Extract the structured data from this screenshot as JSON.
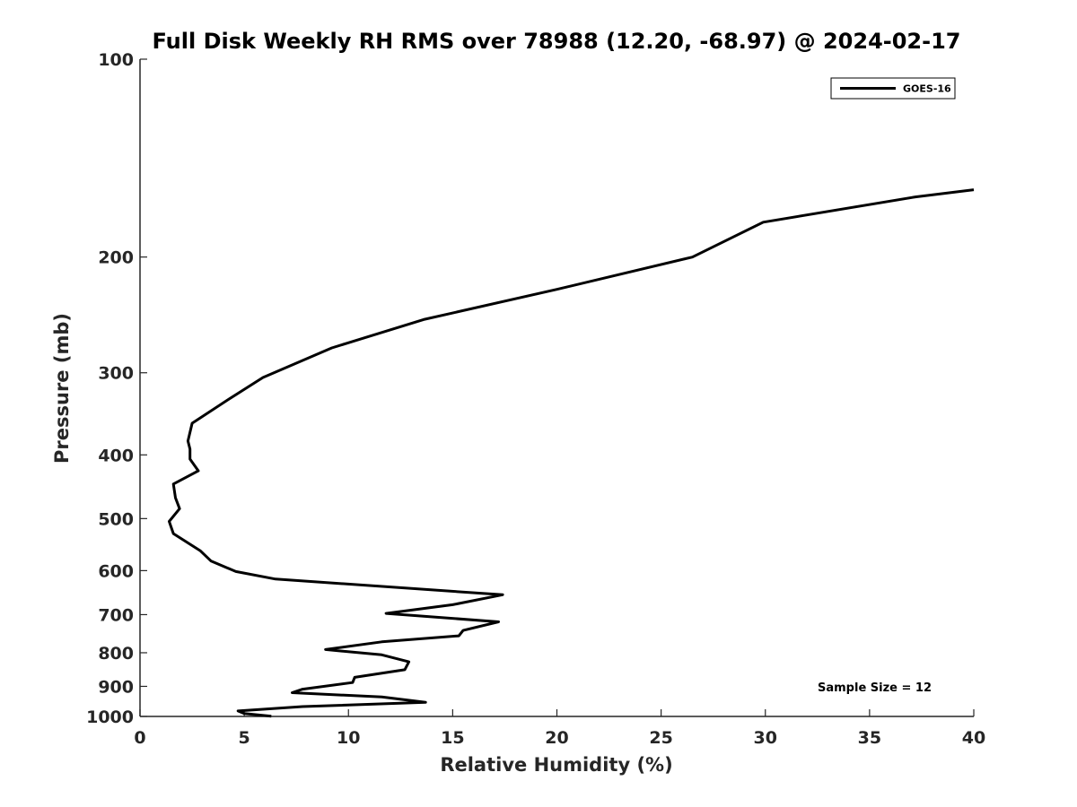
{
  "chart_data": {
    "type": "line",
    "title": "Full Disk Weekly RH RMS over 78988 (12.20, -68.97) @ 2024-02-17",
    "xlabel": "Relative Humidity (%)",
    "ylabel": "Pressure (mb)",
    "xlim": [
      0,
      40
    ],
    "ylim": [
      100,
      1000
    ],
    "y_scale": "log",
    "y_reversed": true,
    "grid": false,
    "legend_position": "top-right",
    "x_ticks": [
      "0",
      "5",
      "10",
      "15",
      "20",
      "25",
      "30",
      "35",
      "40"
    ],
    "y_ticks": [
      "100",
      "200",
      "300",
      "400",
      "500",
      "600",
      "700",
      "800",
      "900",
      "1000"
    ],
    "series": [
      {
        "name": "GOES-16",
        "color": "#000000",
        "x": [
          40.0,
          37.2,
          29.9,
          26.5,
          20.0,
          13.6,
          9.2,
          5.9,
          4.2,
          2.5,
          2.3,
          2.4,
          2.4,
          2.8,
          1.6,
          1.7,
          1.9,
          1.4,
          1.6,
          2.9,
          3.4,
          4.6,
          6.5,
          17.4,
          15.0,
          11.8,
          17.2,
          15.5,
          15.3,
          11.6,
          8.9,
          11.6,
          12.9,
          12.7,
          10.3,
          10.2,
          7.8,
          7.3,
          11.6,
          13.7,
          7.8,
          4.7,
          5.0,
          6.3
        ],
        "y": [
          158,
          162,
          177,
          200,
          224,
          249,
          275,
          305,
          330,
          358,
          381,
          392,
          406,
          423,
          443,
          465,
          483,
          505,
          527,
          560,
          580,
          602,
          618,
          653,
          676,
          697,
          718,
          740,
          754,
          770,
          791,
          806,
          826,
          849,
          872,
          888,
          909,
          920,
          934,
          952,
          966,
          981,
          990,
          999
        ]
      }
    ],
    "annotation": "Sample Size = 12"
  }
}
